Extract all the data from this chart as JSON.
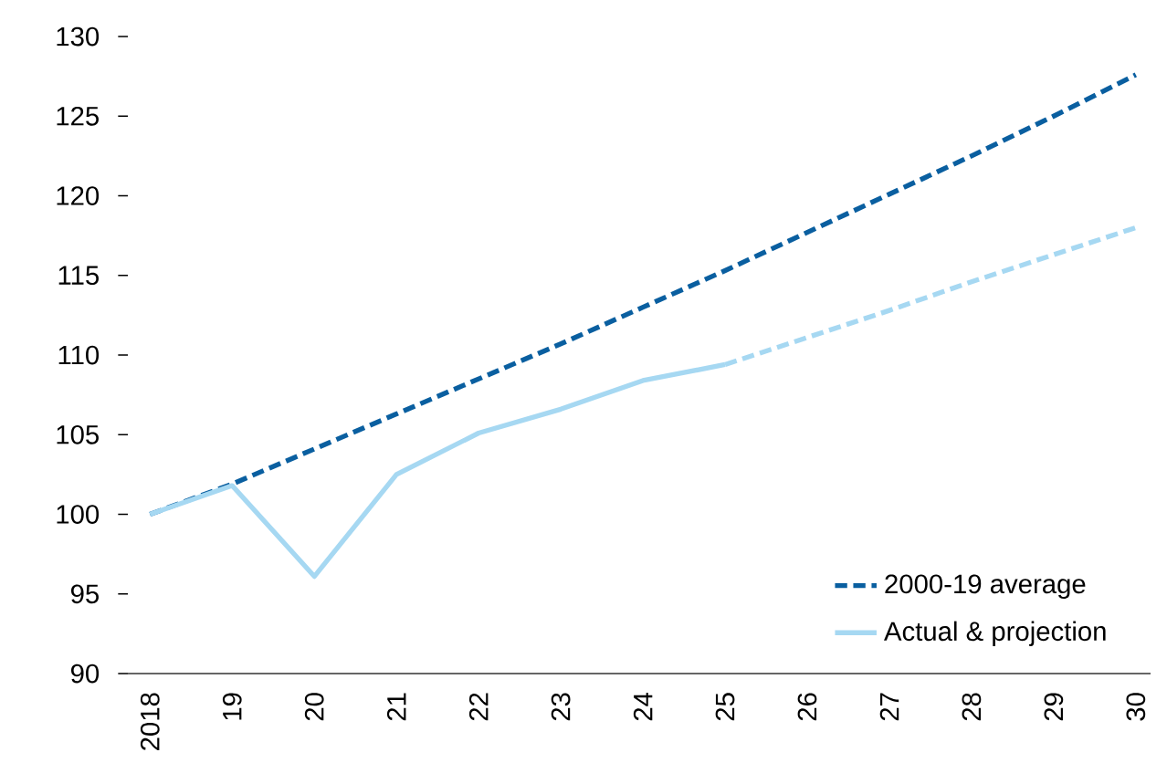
{
  "chart_data": {
    "type": "line",
    "categories": [
      "2018",
      "19",
      "20",
      "21",
      "22",
      "23",
      "24",
      "25",
      "26",
      "27",
      "28",
      "29",
      "30"
    ],
    "series": [
      {
        "name": "2000-19 average",
        "color": "#0a5fa0",
        "line_style": "dashed",
        "values": [
          100,
          101.9,
          104.1,
          106.3,
          108.5,
          110.7,
          113.0,
          115.3,
          117.7,
          120.1,
          122.5,
          125.0,
          127.6
        ]
      },
      {
        "name": "Actual & projection",
        "color": "#a6d8f2",
        "line_style": "solid",
        "values": [
          100,
          101.8,
          96.1,
          102.5,
          105.1,
          106.6,
          108.4,
          109.4,
          null,
          null,
          null,
          null,
          null
        ]
      },
      {
        "color": "#a6d8f2",
        "line_style": "dashed",
        "values": [
          null,
          null,
          null,
          null,
          null,
          null,
          null,
          109.4,
          111.1,
          112.8,
          114.6,
          116.3,
          118.0
        ]
      }
    ],
    "ylim": [
      90,
      130
    ],
    "yticks": [
      90,
      95,
      100,
      105,
      110,
      115,
      120,
      125,
      130
    ],
    "grid": false,
    "legend": "bottom right",
    "marker": "none"
  }
}
